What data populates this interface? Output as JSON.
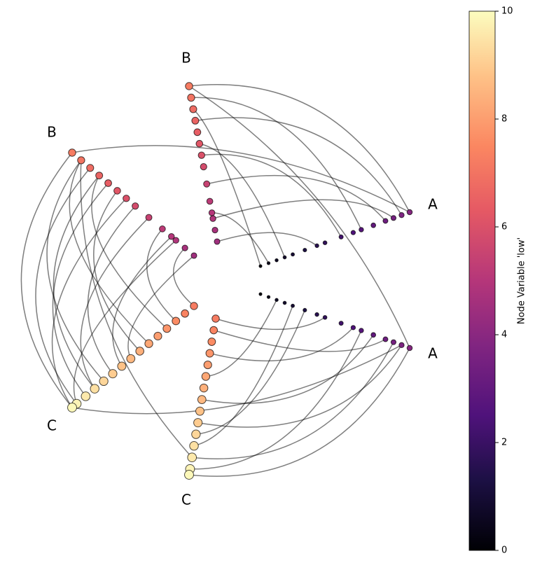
{
  "chart_data": {
    "type": "hive",
    "axes": [
      {
        "label": "A",
        "values": [
          0.2,
          0.4,
          0.6,
          0.8,
          1.0,
          1.3,
          1.6,
          1.8,
          2.2,
          2.5,
          2.7,
          3.0,
          3.3,
          3.5,
          3.7,
          3.9
        ]
      },
      {
        "label": "A",
        "values": [
          0.2,
          0.4,
          0.6,
          0.8,
          1.0,
          1.3,
          1.6,
          1.8,
          2.2,
          2.5,
          2.7,
          3.0,
          3.3,
          3.5,
          3.7,
          3.9
        ]
      },
      {
        "label": "B",
        "values": [
          4.5,
          4.7,
          4.9,
          5.0,
          5.2,
          5.5,
          5.8,
          6.0,
          6.2,
          6.4,
          6.6,
          6.8,
          7.0,
          7.2
        ]
      },
      {
        "label": "B",
        "values": [
          4.5,
          4.7,
          4.9,
          5.0,
          5.2,
          5.5,
          5.8,
          6.0,
          6.2,
          6.4,
          6.6,
          6.8,
          7.0,
          7.2
        ]
      },
      {
        "label": "C",
        "values": [
          7.2,
          7.4,
          7.6,
          7.8,
          8.0,
          8.2,
          8.4,
          8.6,
          8.8,
          9.0,
          9.2,
          9.4,
          9.6,
          9.8,
          9.9
        ]
      },
      {
        "label": "C",
        "values": [
          7.2,
          7.4,
          7.6,
          7.8,
          8.0,
          8.2,
          8.4,
          8.6,
          8.8,
          9.0,
          9.2,
          9.4,
          9.6,
          9.8,
          9.9
        ]
      }
    ],
    "edges": [
      [
        2,
        13,
        0,
        15
      ],
      [
        2,
        12,
        0,
        10
      ],
      [
        2,
        10,
        0,
        14
      ],
      [
        2,
        8,
        0,
        3
      ],
      [
        2,
        5,
        0,
        12
      ],
      [
        2,
        3,
        0,
        1
      ],
      [
        2,
        11,
        0,
        0
      ],
      [
        2,
        7,
        0,
        8
      ],
      [
        2,
        2,
        0,
        13
      ],
      [
        2,
        0,
        0,
        6
      ],
      [
        3,
        13,
        4,
        14
      ],
      [
        3,
        12,
        4,
        10
      ],
      [
        3,
        11,
        4,
        13
      ],
      [
        3,
        10,
        4,
        3
      ],
      [
        3,
        9,
        4,
        12
      ],
      [
        3,
        8,
        4,
        6
      ],
      [
        3,
        7,
        4,
        14
      ],
      [
        3,
        6,
        4,
        9
      ],
      [
        3,
        5,
        4,
        11
      ],
      [
        3,
        4,
        4,
        2
      ],
      [
        3,
        3,
        4,
        8
      ],
      [
        3,
        2,
        4,
        13
      ],
      [
        3,
        1,
        4,
        0
      ],
      [
        3,
        0,
        4,
        7
      ],
      [
        3,
        12,
        4,
        5
      ],
      [
        3,
        10,
        4,
        11
      ],
      [
        5,
        14,
        1,
        15
      ],
      [
        5,
        13,
        1,
        10
      ],
      [
        5,
        12,
        1,
        13
      ],
      [
        5,
        10,
        1,
        5
      ],
      [
        5,
        9,
        1,
        14
      ],
      [
        5,
        7,
        1,
        11
      ],
      [
        5,
        5,
        1,
        2
      ],
      [
        5,
        3,
        1,
        9
      ],
      [
        5,
        1,
        1,
        12
      ],
      [
        5,
        0,
        1,
        7
      ],
      [
        5,
        11,
        1,
        4
      ],
      [
        3,
        13,
        0,
        15
      ],
      [
        2,
        13,
        1,
        15
      ],
      [
        4,
        14,
        1,
        14
      ],
      [
        3,
        12,
        5,
        12
      ]
    ],
    "colorbar": {
      "label": "Node Variable 'low'",
      "lim": [
        0,
        10
      ],
      "ticks": [
        0,
        2,
        4,
        6,
        8,
        10
      ],
      "colormap": "magma"
    }
  }
}
